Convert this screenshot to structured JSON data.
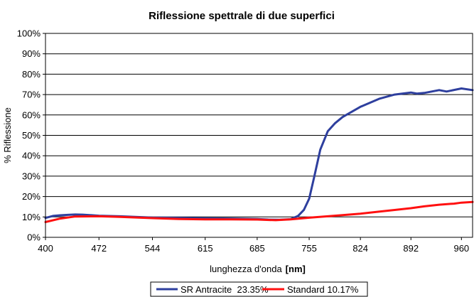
{
  "chart_data": {
    "type": "line",
    "title": "Riflessione spettrale di due superfici",
    "xlabel": "lunghezza d'onda",
    "xlabel_unit": "[nm]",
    "ylabel": "% Riflessione",
    "xlim": [
      400,
      975
    ],
    "ylim": [
      0,
      100
    ],
    "x_ticks": [
      400,
      472,
      544,
      615,
      685,
      755,
      824,
      892,
      960
    ],
    "y_ticks": [
      "0%",
      "10%",
      "20%",
      "30%",
      "40%",
      "50%",
      "60%",
      "70%",
      "80%",
      "90%",
      "100%"
    ],
    "grid": "horizontal",
    "legend_position": "bottom",
    "series": [
      {
        "name": "SR Antracite  23.35%",
        "color": "#2e3f9e",
        "x": [
          400,
          410,
          420,
          430,
          440,
          450,
          472,
          500,
          544,
          580,
          615,
          650,
          685,
          700,
          715,
          730,
          740,
          748,
          755,
          762,
          770,
          780,
          790,
          800,
          824,
          850,
          870,
          892,
          900,
          910,
          920,
          930,
          940,
          960,
          975
        ],
        "y": [
          9.5,
          10.5,
          10.8,
          11.0,
          11.2,
          11.1,
          10.6,
          10.3,
          9.7,
          9.5,
          9.3,
          9.2,
          9.0,
          8.7,
          8.6,
          8.9,
          10.5,
          13.5,
          19,
          30,
          43,
          52,
          56,
          59,
          64,
          68,
          70,
          71,
          70.5,
          70.8,
          71.5,
          72.2,
          71.5,
          73,
          72.2
        ]
      },
      {
        "name": "Standard 10.17%",
        "color": "#ff1010",
        "x": [
          400,
          420,
          440,
          472,
          500,
          544,
          580,
          615,
          650,
          685,
          710,
          730,
          755,
          780,
          800,
          824,
          850,
          870,
          892,
          910,
          930,
          950,
          960,
          975
        ],
        "y": [
          7.5,
          9.2,
          10.2,
          10.3,
          10.0,
          9.4,
          9.0,
          8.8,
          8.8,
          8.7,
          8.4,
          8.8,
          9.6,
          10.3,
          10.9,
          11.6,
          12.6,
          13.4,
          14.3,
          15.2,
          16.0,
          16.5,
          17.0,
          17.3
        ]
      }
    ]
  }
}
